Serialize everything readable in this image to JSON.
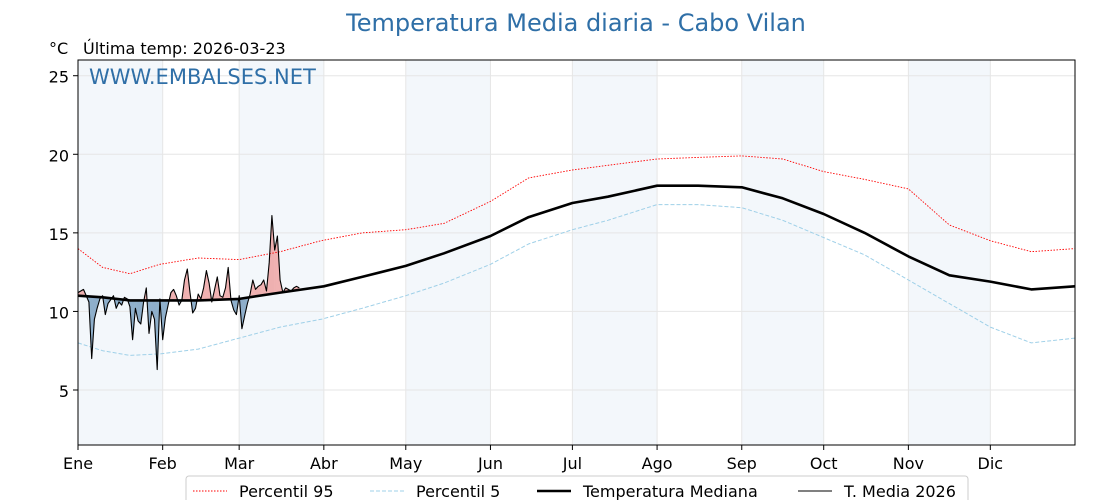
{
  "chart_data": {
    "type": "line",
    "title": "Temperatura Media diaria - Cabo Vilan",
    "ylabel": "°C",
    "last_temp_label": "Última temp: 2026-03-23",
    "watermark": "WWW.EMBALSES.NET",
    "ylim": [
      1.5,
      26
    ],
    "xlim": [
      1,
      366
    ],
    "yticks": [
      5,
      10,
      15,
      20,
      25
    ],
    "months": [
      {
        "label": "Ene",
        "day": 1
      },
      {
        "label": "Feb",
        "day": 32
      },
      {
        "label": "Mar",
        "day": 60
      },
      {
        "label": "Abr",
        "day": 91
      },
      {
        "label": "May",
        "day": 121
      },
      {
        "label": "Jun",
        "day": 152
      },
      {
        "label": "Jul",
        "day": 182
      },
      {
        "label": "Ago",
        "day": 213
      },
      {
        "label": "Sep",
        "day": 244
      },
      {
        "label": "Oct",
        "day": 274
      },
      {
        "label": "Nov",
        "day": 305
      },
      {
        "label": "Dic",
        "day": 335
      }
    ],
    "grid": true,
    "legend_position": "bottom-center",
    "series": [
      {
        "name": "Percentil 95",
        "color": "#ff0000",
        "style": "dotted",
        "x": [
          1,
          10,
          20,
          31,
          45,
          60,
          75,
          90,
          105,
          121,
          135,
          152,
          166,
          182,
          195,
          213,
          228,
          244,
          259,
          274,
          289,
          305,
          320,
          335,
          350,
          366
        ],
        "y": [
          14.0,
          12.8,
          12.4,
          13.0,
          13.4,
          13.3,
          13.8,
          14.5,
          15.0,
          15.2,
          15.6,
          17.0,
          18.5,
          19.0,
          19.3,
          19.7,
          19.8,
          19.9,
          19.7,
          18.9,
          18.4,
          17.8,
          15.5,
          14.5,
          13.8,
          14.0
        ]
      },
      {
        "name": "Percentil 5",
        "color": "#9fd0e8",
        "style": "dashed",
        "x": [
          1,
          10,
          20,
          31,
          45,
          60,
          75,
          90,
          105,
          121,
          135,
          152,
          166,
          182,
          195,
          213,
          228,
          244,
          259,
          274,
          289,
          305,
          320,
          335,
          350,
          366
        ],
        "y": [
          8.0,
          7.5,
          7.2,
          7.3,
          7.6,
          8.3,
          9.0,
          9.5,
          10.2,
          11.0,
          11.8,
          13.0,
          14.3,
          15.2,
          15.8,
          16.8,
          16.8,
          16.6,
          15.8,
          14.7,
          13.6,
          12.0,
          10.5,
          9.0,
          8.0,
          8.3
        ]
      },
      {
        "name": "Temperatura Mediana",
        "color": "#000000",
        "style": "solid-thick",
        "x": [
          1,
          10,
          20,
          31,
          45,
          60,
          75,
          91,
          105,
          121,
          135,
          152,
          166,
          182,
          195,
          213,
          228,
          244,
          259,
          274,
          289,
          305,
          320,
          335,
          350,
          366
        ],
        "y": [
          11.0,
          10.9,
          10.7,
          10.7,
          10.7,
          10.8,
          11.2,
          11.6,
          12.2,
          12.9,
          13.7,
          14.8,
          16.0,
          16.9,
          17.3,
          18.0,
          18.0,
          17.9,
          17.2,
          16.2,
          15.0,
          13.5,
          12.3,
          11.9,
          11.4,
          11.6
        ]
      },
      {
        "name": "T. Media 2026",
        "color": "#000000",
        "style": "solid-thin",
        "x": [
          1,
          3,
          5,
          6,
          7,
          8,
          9,
          10,
          11,
          12,
          14,
          15,
          16,
          17,
          18,
          19,
          20,
          21,
          22,
          23,
          24,
          25,
          26,
          27,
          28,
          29,
          30,
          31,
          32,
          33,
          34,
          35,
          36,
          37,
          38,
          39,
          40,
          41,
          42,
          43,
          44,
          45,
          46,
          47,
          48,
          49,
          50,
          51,
          52,
          53,
          54,
          55,
          56,
          57,
          58,
          59,
          60,
          61,
          62,
          63,
          64,
          65,
          66,
          67,
          68,
          69,
          70,
          71,
          72,
          73,
          74,
          75,
          76,
          77,
          78,
          79,
          80,
          81,
          82
        ],
        "y": [
          11.2,
          11.4,
          10.6,
          7.0,
          9.5,
          10.2,
          10.8,
          11.0,
          9.8,
          10.5,
          11.0,
          10.2,
          10.6,
          10.4,
          10.9,
          10.8,
          10.3,
          8.2,
          10.2,
          9.4,
          9.2,
          10.6,
          11.5,
          8.6,
          10.0,
          9.5,
          6.3,
          10.8,
          8.2,
          9.6,
          10.4,
          11.2,
          11.4,
          11.0,
          10.4,
          10.7,
          12.0,
          12.7,
          11.2,
          9.9,
          10.2,
          11.1,
          10.8,
          11.5,
          12.6,
          11.8,
          10.6,
          11.4,
          12.2,
          11.0,
          10.9,
          11.5,
          12.8,
          10.7,
          10.1,
          9.8,
          11.0,
          8.9,
          9.7,
          10.5,
          11.1,
          12.0,
          11.4,
          11.6,
          11.7,
          12.0,
          11.3,
          13.1,
          16.1,
          13.9,
          14.8,
          12.0,
          11.2,
          11.5,
          11.4,
          11.3,
          11.5,
          11.6,
          11.5
        ]
      }
    ]
  }
}
